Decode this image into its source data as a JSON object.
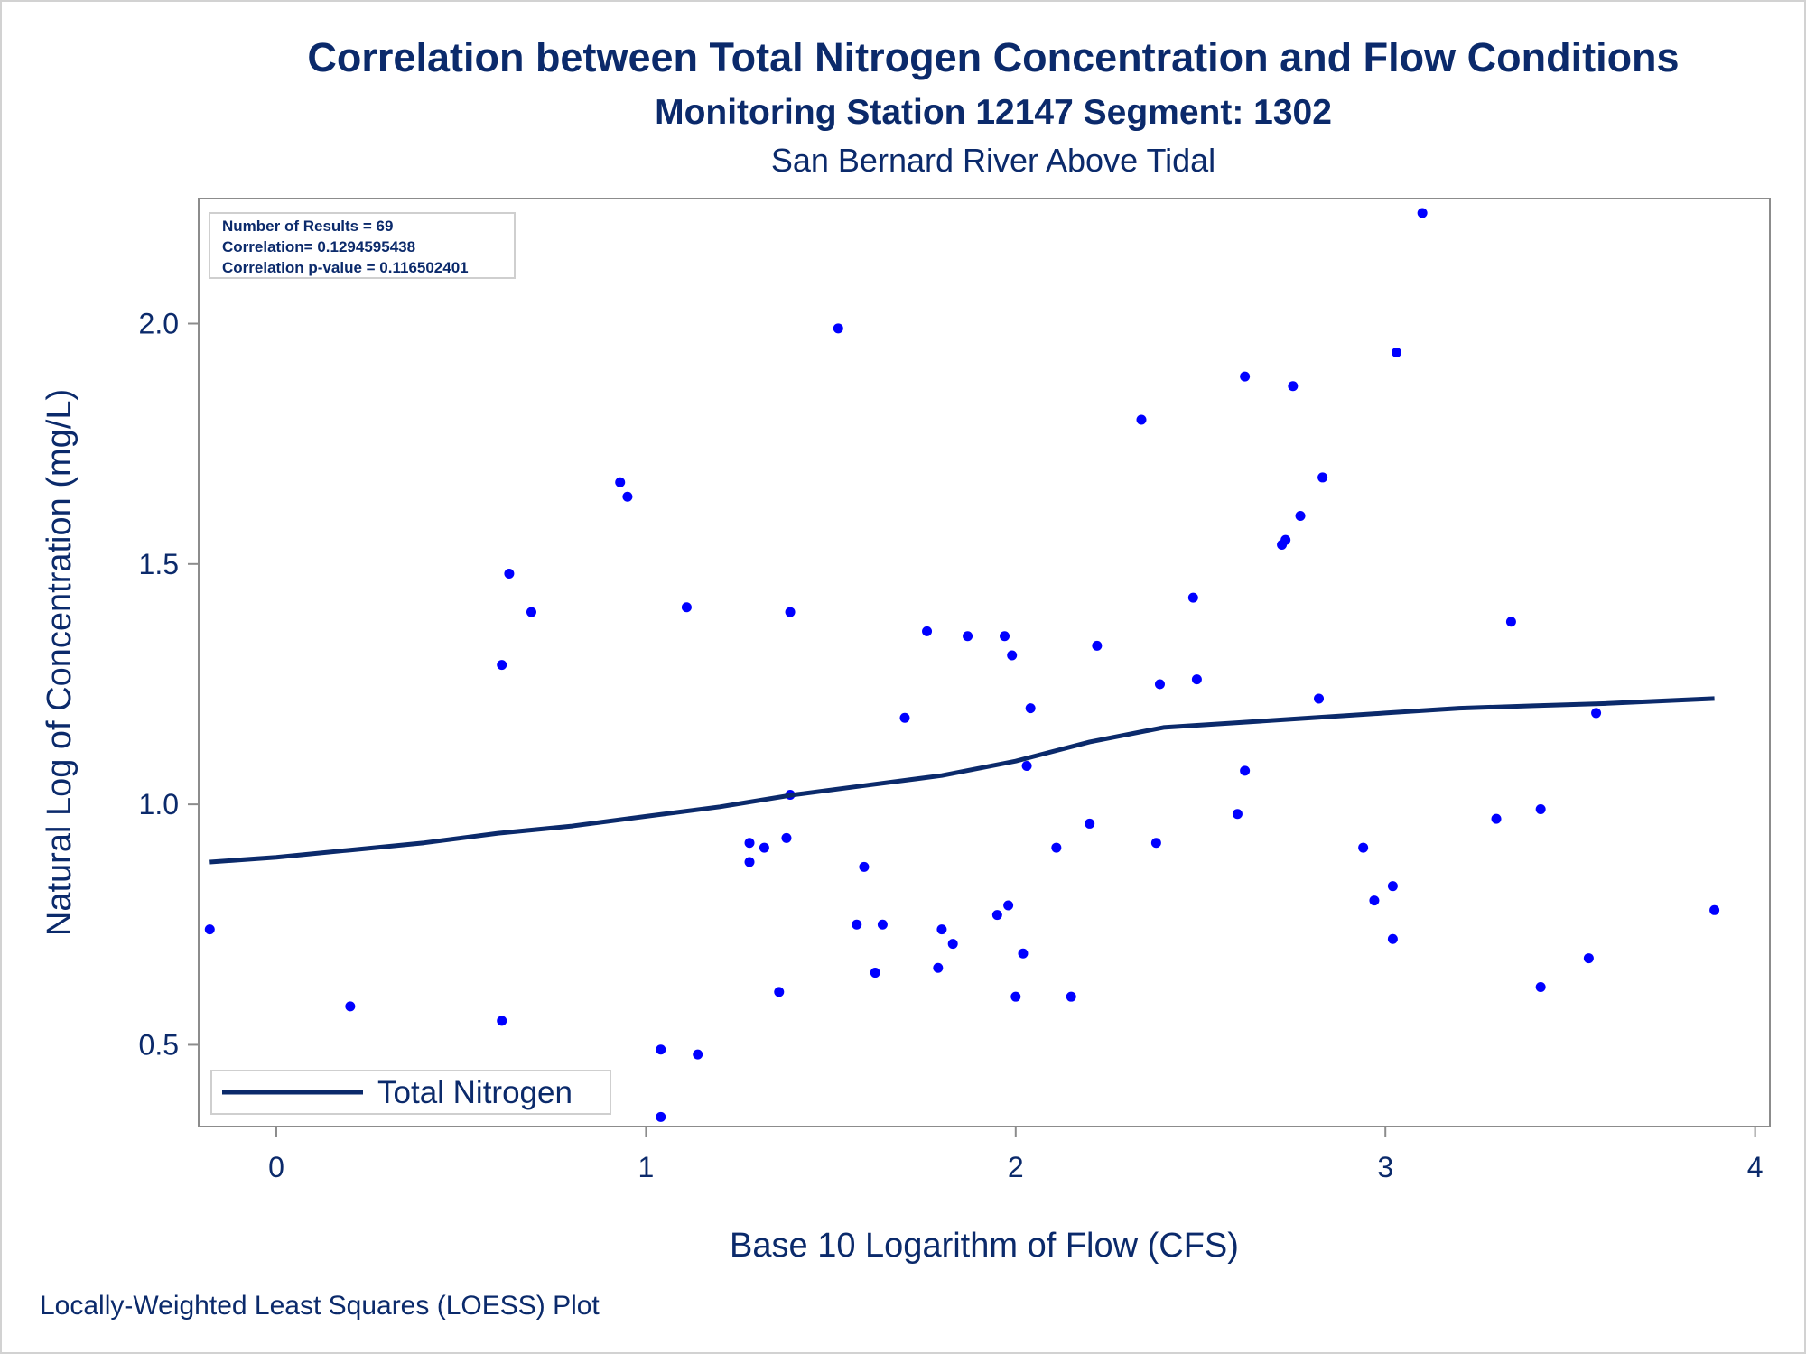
{
  "titles": {
    "title": "Correlation between Total Nitrogen Concentration and Flow Conditions",
    "subtitle1": "Monitoring Station 12147 Segment: 1302",
    "subtitle2": "San Bernard River Above Tidal"
  },
  "footnote": "Locally-Weighted Least Squares (LOESS) Plot",
  "stats": {
    "line1": "Number of Results = 69",
    "line2": "Correlation= 0.1294595438",
    "line3": "Correlation p-value = 0.116502401"
  },
  "colors": {
    "title": "#0b2a6b",
    "points": "#0000ff",
    "loess_line": "#0b2a6b",
    "axis": "#8c8c8c"
  },
  "chart_data": {
    "type": "scatter",
    "xlabel": "Base 10 Logarithm of Flow (CFS)",
    "ylabel": "Natural Log of Concentration (mg/L)",
    "xlim": [
      -0.21,
      4.04
    ],
    "ylim": [
      0.33,
      2.26
    ],
    "xticks": [
      0,
      1,
      2,
      3,
      4
    ],
    "yticks": [
      0.5,
      1.0,
      1.5,
      2.0
    ],
    "ytick_labels": [
      "0.5",
      "1.0",
      "1.5",
      "2.0"
    ],
    "grid": false,
    "legend": {
      "position": "bottom-left",
      "entries": [
        "Total Nitrogen"
      ]
    },
    "points": [
      [
        -0.18,
        0.74
      ],
      [
        0.2,
        0.58
      ],
      [
        0.61,
        1.29
      ],
      [
        0.61,
        0.55
      ],
      [
        0.63,
        1.48
      ],
      [
        0.69,
        1.4
      ],
      [
        0.93,
        1.67
      ],
      [
        0.95,
        1.64
      ],
      [
        1.04,
        0.49
      ],
      [
        1.04,
        0.35
      ],
      [
        1.11,
        1.41
      ],
      [
        1.14,
        0.48
      ],
      [
        1.28,
        0.92
      ],
      [
        1.28,
        0.88
      ],
      [
        1.32,
        0.91
      ],
      [
        1.36,
        0.61
      ],
      [
        1.38,
        0.93
      ],
      [
        1.39,
        1.4
      ],
      [
        1.39,
        1.02
      ],
      [
        1.52,
        1.99
      ],
      [
        1.57,
        0.75
      ],
      [
        1.59,
        0.87
      ],
      [
        1.62,
        0.65
      ],
      [
        1.64,
        0.75
      ],
      [
        1.7,
        1.18
      ],
      [
        1.76,
        1.36
      ],
      [
        1.79,
        0.66
      ],
      [
        1.8,
        0.74
      ],
      [
        1.83,
        0.71
      ],
      [
        1.87,
        1.35
      ],
      [
        1.95,
        0.77
      ],
      [
        1.97,
        1.35
      ],
      [
        1.98,
        0.79
      ],
      [
        1.99,
        1.31
      ],
      [
        2.0,
        0.6
      ],
      [
        2.02,
        0.69
      ],
      [
        2.03,
        1.08
      ],
      [
        2.04,
        1.2
      ],
      [
        2.11,
        0.91
      ],
      [
        2.15,
        0.6
      ],
      [
        2.2,
        0.96
      ],
      [
        2.22,
        1.33
      ],
      [
        2.34,
        1.8
      ],
      [
        2.38,
        0.92
      ],
      [
        2.39,
        1.25
      ],
      [
        2.48,
        1.43
      ],
      [
        2.49,
        1.26
      ],
      [
        2.6,
        0.98
      ],
      [
        2.62,
        1.89
      ],
      [
        2.62,
        1.07
      ],
      [
        2.72,
        1.54
      ],
      [
        2.73,
        1.55
      ],
      [
        2.75,
        1.87
      ],
      [
        2.77,
        1.6
      ],
      [
        2.82,
        1.22
      ],
      [
        2.83,
        1.68
      ],
      [
        2.94,
        0.91
      ],
      [
        2.97,
        0.8
      ],
      [
        3.02,
        0.72
      ],
      [
        3.02,
        0.83
      ],
      [
        3.03,
        1.94
      ],
      [
        3.1,
        2.23
      ],
      [
        3.3,
        0.97
      ],
      [
        3.34,
        1.38
      ],
      [
        3.42,
        0.99
      ],
      [
        3.42,
        0.62
      ],
      [
        3.55,
        0.68
      ],
      [
        3.57,
        1.19
      ],
      [
        3.89,
        0.78
      ]
    ],
    "series": [
      {
        "name": "Total Nitrogen",
        "type": "line",
        "x": [
          -0.18,
          0.0,
          0.2,
          0.4,
          0.6,
          0.8,
          1.0,
          1.2,
          1.4,
          1.6,
          1.8,
          2.0,
          2.2,
          2.4,
          2.6,
          2.8,
          3.0,
          3.2,
          3.4,
          3.6,
          3.89
        ],
        "y": [
          0.88,
          0.89,
          0.905,
          0.92,
          0.94,
          0.955,
          0.975,
          0.995,
          1.02,
          1.04,
          1.06,
          1.09,
          1.13,
          1.16,
          1.17,
          1.18,
          1.19,
          1.2,
          1.205,
          1.21,
          1.22
        ]
      }
    ]
  }
}
